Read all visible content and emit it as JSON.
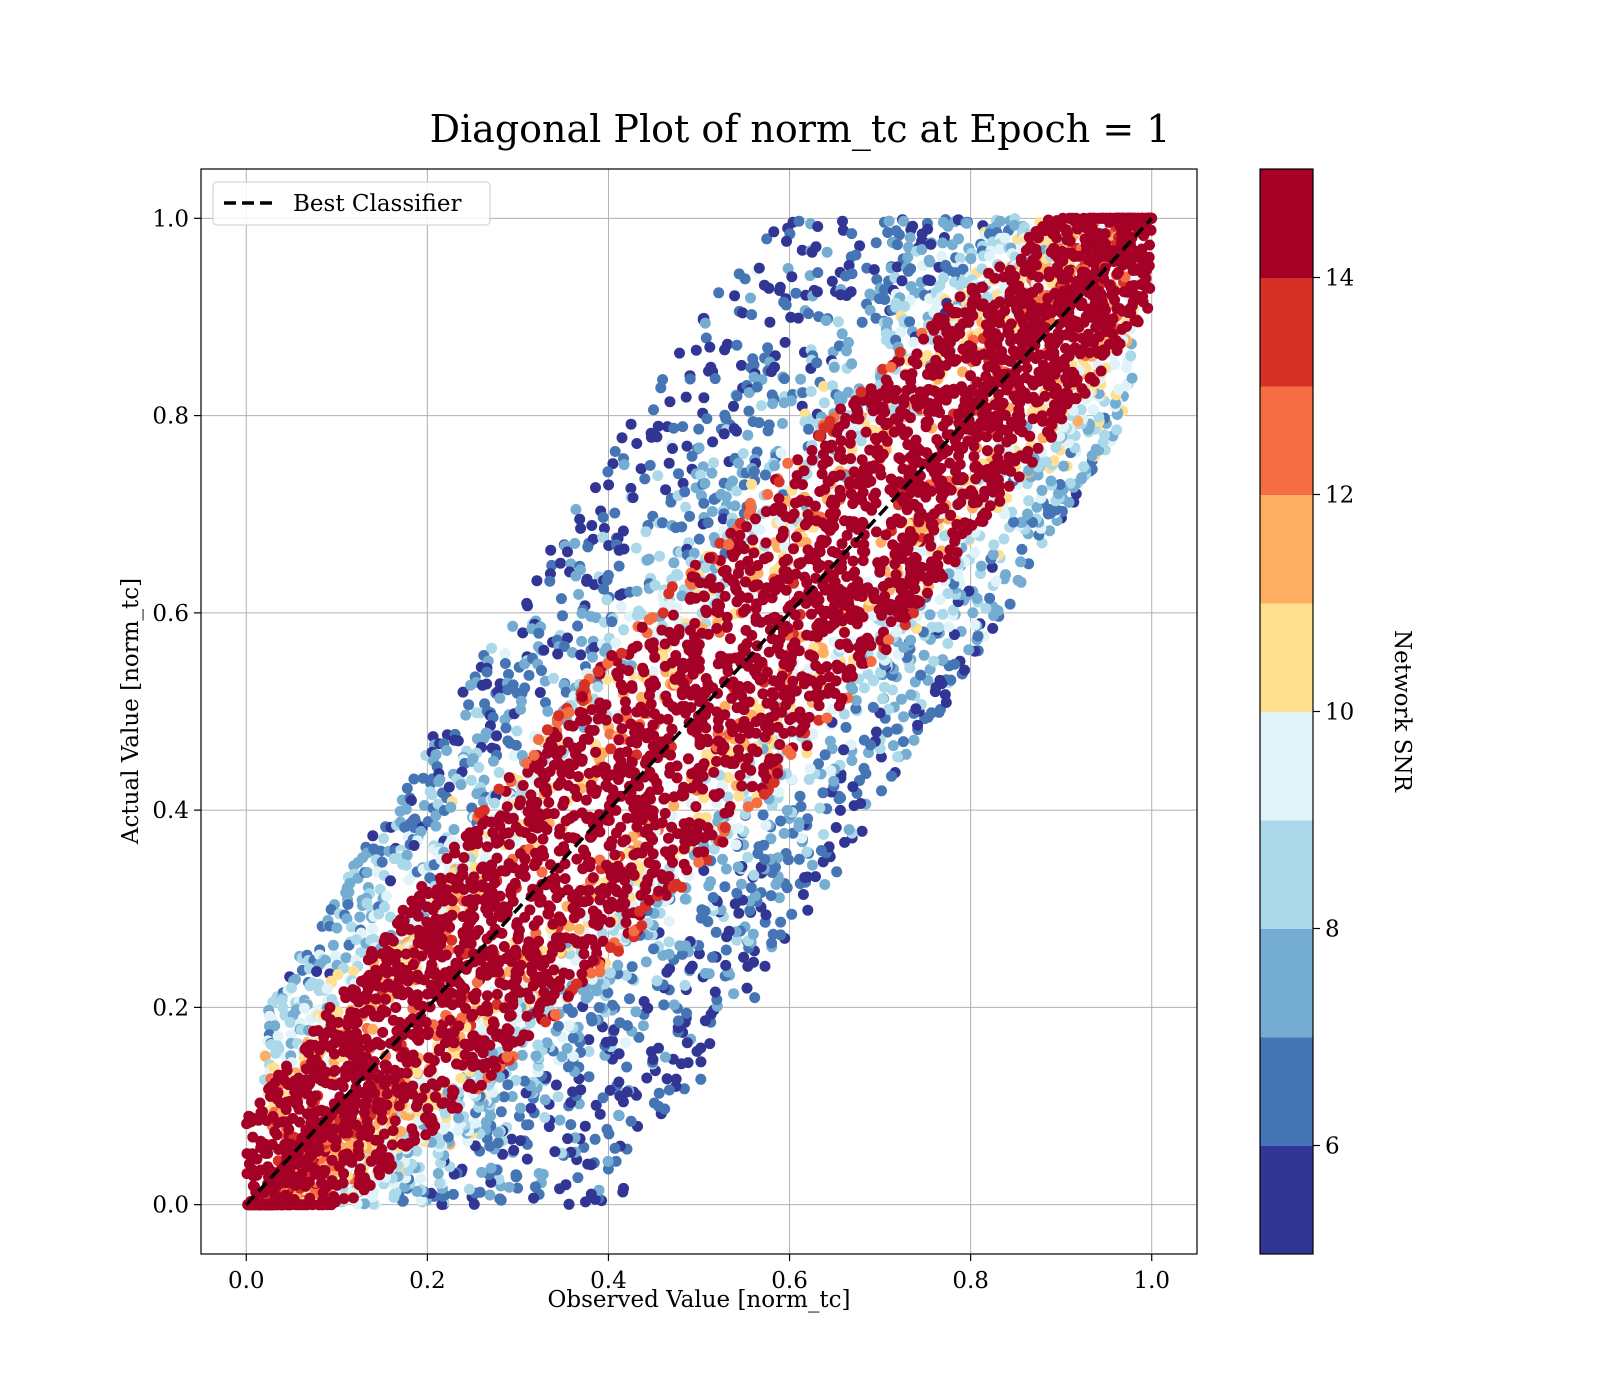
{
  "chart_data": {
    "type": "scatter",
    "title": "Diagonal Plot of norm_tc at Epoch = 1",
    "xlabel": "Observed Value [norm_tc]",
    "ylabel": "Actual Value [norm_tc]",
    "xlim": [
      -0.05,
      1.05
    ],
    "ylim": [
      -0.05,
      1.05
    ],
    "xticks": [
      "0.0",
      "0.2",
      "0.4",
      "0.6",
      "0.8",
      "1.0"
    ],
    "yticks": [
      "0.0",
      "0.2",
      "0.4",
      "0.6",
      "0.8",
      "1.0"
    ],
    "xtick_values": [
      0.0,
      0.2,
      0.4,
      0.6,
      0.8,
      1.0
    ],
    "ytick_values": [
      0.0,
      0.2,
      0.4,
      0.6,
      0.8,
      1.0
    ],
    "grid": true,
    "legend": {
      "position": "top-left",
      "entries": [
        {
          "label": "Best Classifier",
          "style": "dashed",
          "color": "#000000"
        }
      ]
    },
    "reference_line": {
      "label": "Best Classifier",
      "x": [
        0.0,
        1.0
      ],
      "y": [
        0.0,
        1.0
      ]
    },
    "colorbar": {
      "label": "Network SNR",
      "min": 5,
      "max": 15,
      "ticks": [
        "6",
        "8",
        "10",
        "12",
        "14"
      ],
      "tick_values": [
        6,
        8,
        10,
        12,
        14
      ],
      "colors": [
        "#313695",
        "#4575b4",
        "#74add1",
        "#abd9e9",
        "#e0f3f8",
        "#fee090",
        "#fdae61",
        "#f46d43",
        "#d73027",
        "#a50026"
      ]
    },
    "scatter_description": {
      "x_range": [
        0.0,
        1.0
      ],
      "y_range": [
        0.0,
        1.0
      ],
      "high_snr_band_halfwidth": 0.16,
      "high_snr_color": "#a50026",
      "low_snr_spread": 0.45
    }
  }
}
